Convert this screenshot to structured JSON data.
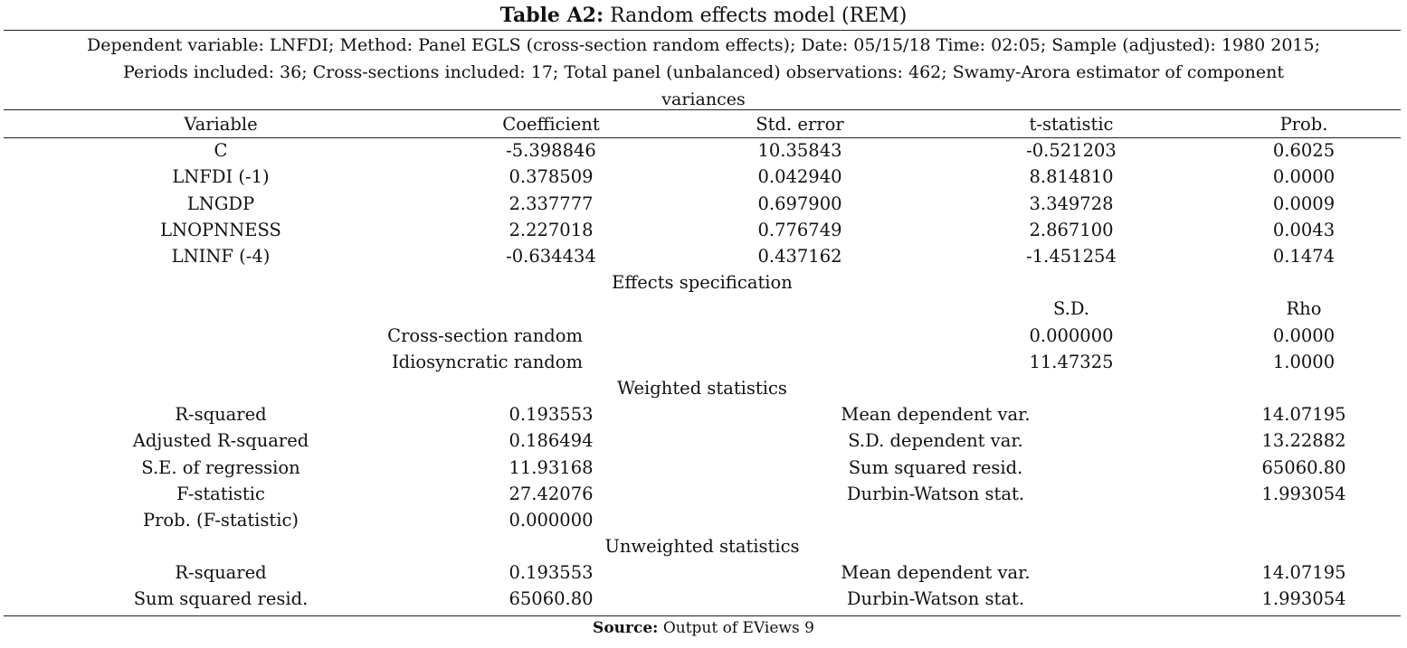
{
  "title": {
    "label": "Table A2:",
    "text": "Random effects model (REM)"
  },
  "description": {
    "line1": "Dependent variable: LNFDI; Method: Panel EGLS (cross-section random effects); Date: 05/15/18 Time: 02:05; Sample (adjusted): 1980 2015;",
    "line2": "Periods included: 36; Cross-sections included: 17; Total panel (unbalanced) observations: 462; Swamy-Arora estimator of component",
    "line3": "variances"
  },
  "header": {
    "variable": "Variable",
    "coefficient": "Coefficient",
    "std_error": "Std. error",
    "t_statistic": "t-statistic",
    "prob": "Prob."
  },
  "rows": [
    {
      "variable": "C",
      "coefficient": "-5.398846",
      "std_error": "10.35843",
      "t_statistic": "-0.521203",
      "prob": "0.6025"
    },
    {
      "variable": "LNFDI (-1)",
      "coefficient": "0.378509",
      "std_error": "0.042940",
      "t_statistic": "8.814810",
      "prob": "0.0000"
    },
    {
      "variable": "LNGDP",
      "coefficient": "2.337777",
      "std_error": "0.697900",
      "t_statistic": "3.349728",
      "prob": "0.0009"
    },
    {
      "variable": "LNOPNNESS",
      "coefficient": "2.227018",
      "std_error": "0.776749",
      "t_statistic": "2.867100",
      "prob": "0.0043"
    },
    {
      "variable": "LNINF (-4)",
      "coefficient": "-0.634434",
      "std_error": "0.437162",
      "t_statistic": "-1.451254",
      "prob": "0.1474"
    }
  ],
  "effects": {
    "heading": "Effects specification",
    "sd_label": "S.D.",
    "rho_label": "Rho",
    "items": [
      {
        "label": "Cross-section random",
        "sd": "0.000000",
        "rho": "0.0000"
      },
      {
        "label": "Idiosyncratic random",
        "sd": "11.47325",
        "rho": "1.0000"
      }
    ]
  },
  "weighted": {
    "heading": "Weighted statistics",
    "rows": [
      {
        "label": "R-squared",
        "value": "0.193553",
        "label2": "Mean dependent var.",
        "value2": "14.07195"
      },
      {
        "label": "Adjusted R-squared",
        "value": "0.186494",
        "label2": "S.D. dependent var.",
        "value2": "13.22882"
      },
      {
        "label": "S.E. of regression",
        "value": "11.93168",
        "label2": "Sum squared resid.",
        "value2": "65060.80"
      },
      {
        "label": "F-statistic",
        "value": "27.42076",
        "label2": "Durbin-Watson stat.",
        "value2": "1.993054"
      },
      {
        "label": "Prob. (F-statistic)",
        "value": "0.000000",
        "label2": "",
        "value2": ""
      }
    ]
  },
  "unweighted": {
    "heading": "Unweighted statistics",
    "rows": [
      {
        "label": "R-squared",
        "value": "0.193553",
        "label2": "Mean dependent var.",
        "value2": "14.07195"
      },
      {
        "label": "Sum squared resid.",
        "value": "65060.80",
        "label2": "Durbin-Watson stat.",
        "value2": "1.993054"
      }
    ]
  },
  "source": {
    "label": "Source:",
    "text": "Output of EViews 9"
  }
}
